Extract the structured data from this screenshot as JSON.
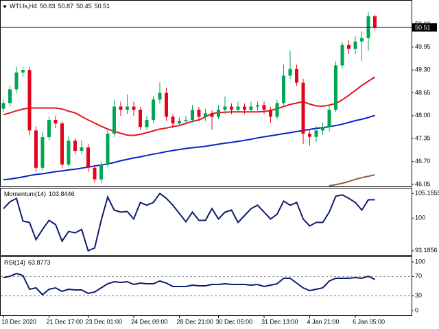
{
  "chart_data": [
    {
      "type": "candlestick",
      "title": "WTI.fs,H4",
      "categories": [
        "18 Dec 2020",
        null,
        null,
        null,
        null,
        null,
        null,
        "21 Dec 17:00",
        null,
        null,
        null,
        null,
        null,
        "23 Dec 01:00",
        null,
        null,
        null,
        null,
        null,
        null,
        "24 Dec 09:00",
        null,
        null,
        null,
        null,
        null,
        null,
        "28 Dec 21:00",
        null,
        null,
        null,
        null,
        null,
        "30 Dec 05:00",
        null,
        null,
        null,
        null,
        null,
        null,
        "31 Dec 13:00",
        null,
        null,
        null,
        null,
        null,
        null,
        "4 Jan 21:00",
        null,
        null,
        null,
        null,
        null,
        null,
        "6 Jan 05:00",
        null,
        null,
        null
      ],
      "open": [
        48.2,
        48.36,
        48.75,
        49.23,
        49.3,
        47.58,
        46.52,
        47.39,
        47.88,
        47.78,
        46.61,
        47.29,
        47.0,
        47.1,
        46.52,
        46.19,
        46.61,
        47.49,
        48.26,
        48.17,
        48.26,
        48.17,
        47.68,
        47.88,
        48.46,
        48.65,
        47.97,
        47.78,
        47.85,
        47.88,
        48.17,
        47.97,
        48.07,
        47.97,
        48.17,
        48.26,
        48.17,
        48.26,
        48.17,
        48.26,
        48.3,
        48.17,
        47.97,
        48.36,
        49.14,
        49.33,
        48.94,
        47.49,
        47.4,
        47.58,
        47.68,
        48.17,
        49.43,
        50.01,
        49.9,
        50.11,
        50.21,
        50.83
      ],
      "high": [
        48.46,
        48.85,
        49.4,
        49.38,
        49.4,
        47.7,
        47.55,
        47.98,
        48.0,
        47.85,
        47.4,
        47.35,
        47.3,
        47.2,
        46.6,
        46.7,
        47.6,
        48.45,
        48.4,
        48.6,
        48.4,
        48.25,
        48.0,
        48.55,
        48.95,
        48.8,
        48.05,
        47.95,
        48.0,
        48.3,
        48.25,
        48.2,
        48.15,
        48.3,
        48.55,
        48.35,
        48.4,
        48.35,
        48.4,
        48.4,
        48.4,
        48.25,
        48.45,
        49.45,
        49.85,
        49.45,
        49.05,
        47.6,
        47.7,
        47.8,
        48.3,
        49.55,
        50.1,
        50.15,
        50.25,
        50.4,
        50.95,
        50.87
      ],
      "low": [
        48.1,
        48.26,
        48.65,
        49.1,
        47.45,
        46.4,
        46.45,
        47.3,
        47.65,
        46.5,
        46.55,
        46.9,
        46.9,
        46.4,
        46.1,
        46.1,
        46.55,
        47.4,
        48.0,
        48.05,
        48.0,
        47.6,
        47.6,
        47.8,
        48.35,
        47.85,
        47.65,
        47.7,
        47.75,
        47.8,
        47.85,
        47.85,
        47.6,
        47.9,
        48.05,
        48.05,
        48.1,
        48.05,
        48.1,
        48.15,
        48.05,
        47.8,
        47.9,
        48.3,
        49.05,
        48.85,
        47.2,
        47.15,
        47.25,
        47.45,
        47.55,
        48.1,
        49.35,
        49.75,
        49.75,
        49.55,
        49.85,
        50.45
      ],
      "close": [
        48.36,
        48.75,
        49.23,
        49.3,
        47.58,
        46.52,
        47.39,
        47.88,
        47.78,
        46.61,
        47.29,
        47.0,
        47.1,
        46.52,
        46.19,
        46.61,
        47.49,
        48.26,
        48.17,
        48.26,
        48.17,
        47.68,
        47.88,
        48.46,
        48.65,
        47.97,
        47.78,
        47.85,
        47.88,
        48.17,
        47.97,
        48.07,
        47.97,
        48.17,
        48.26,
        48.17,
        48.26,
        48.17,
        48.26,
        48.3,
        48.17,
        47.97,
        48.36,
        49.14,
        49.33,
        48.94,
        47.49,
        47.4,
        47.58,
        47.68,
        48.17,
        49.43,
        50.01,
        49.9,
        50.11,
        50.21,
        50.83,
        50.51
      ],
      "up_color": "#00a651",
      "down_color": "#e3061a",
      "series": [
        {
          "color": "#e3161e",
          "values": [
            48.03,
            48.08,
            48.14,
            48.19,
            48.22,
            48.22,
            48.22,
            48.22,
            48.22,
            48.19,
            48.13,
            48.08,
            47.98,
            47.88,
            47.79,
            47.7,
            47.62,
            47.56,
            47.5,
            47.45,
            47.44,
            47.47,
            47.52,
            47.57,
            47.62,
            47.65,
            47.69,
            47.72,
            47.78,
            47.84,
            47.88,
            47.97,
            48.06,
            48.09,
            48.1,
            48.11,
            48.11,
            48.11,
            48.11,
            48.11,
            48.12,
            48.15,
            48.2,
            48.26,
            48.32,
            48.36,
            48.4,
            48.33,
            48.28,
            48.27,
            48.3,
            48.35,
            48.45,
            48.58,
            48.72,
            48.86,
            48.98,
            49.1
          ]
        },
        {
          "color": "#0a22c8",
          "values": [
            46.18,
            46.2,
            46.23,
            46.26,
            46.3,
            46.33,
            46.35,
            46.38,
            46.41,
            46.43,
            46.46,
            46.48,
            46.51,
            46.54,
            46.57,
            46.6,
            46.63,
            46.67,
            46.72,
            46.76,
            46.8,
            46.83,
            46.87,
            46.91,
            46.94,
            46.98,
            47.01,
            47.04,
            47.07,
            47.09,
            47.11,
            47.13,
            47.16,
            47.19,
            47.22,
            47.24,
            47.27,
            47.3,
            47.33,
            47.37,
            47.4,
            47.43,
            47.46,
            47.49,
            47.52,
            47.55,
            47.58,
            47.61,
            47.64,
            47.66,
            47.69,
            47.72,
            47.76,
            47.81,
            47.86,
            47.9,
            47.95,
            48.01
          ]
        },
        {
          "color": "#9c5a2e",
          "values": [
            null,
            null,
            null,
            null,
            null,
            null,
            null,
            null,
            null,
            null,
            null,
            null,
            null,
            null,
            null,
            null,
            null,
            null,
            null,
            null,
            null,
            null,
            null,
            null,
            null,
            null,
            null,
            null,
            null,
            null,
            null,
            null,
            null,
            null,
            null,
            null,
            null,
            null,
            null,
            null,
            null,
            null,
            null,
            null,
            null,
            null,
            null,
            null,
            null,
            null,
            46.01,
            46.04,
            46.08,
            46.13,
            46.19,
            46.24,
            46.28,
            46.32
          ]
        }
      ],
      "ylim": [
        45.99,
        51.27
      ],
      "yticks": [
        {
          "value": 50.6,
          "label": "50.60"
        },
        {
          "value": 49.95,
          "label": "49.95"
        },
        {
          "value": 49.3,
          "label": "49.30"
        },
        {
          "value": 48.65,
          "label": "48.65"
        },
        {
          "value": 48.0,
          "label": "48.00"
        },
        {
          "value": 47.35,
          "label": "47.35"
        },
        {
          "value": 46.7,
          "label": "46.70"
        },
        {
          "value": 46.05,
          "label": "46.05"
        }
      ]
    },
    {
      "type": "line",
      "title": "Momentum(14)",
      "color": "#0d1a6e",
      "values": [
        101.98,
        103.42,
        104.14,
        99.38,
        99.1,
        95.49,
        97.65,
        99.53,
        98.66,
        95.2,
        97.22,
        96.93,
        97.65,
        93.1856,
        93.76,
        99.53,
        104.43,
        101.69,
        101.26,
        101.4,
        99.82,
        103.28,
        102.7,
        103.28,
        105.1555,
        104.14,
        102.7,
        100.97,
        99.24,
        101.26,
        99.53,
        99.53,
        101.98,
        99.82,
        101.26,
        101.69,
        99.1,
        100.54,
        101.98,
        102.7,
        101.26,
        99.82,
        100.83,
        103.57,
        102.7,
        103.28,
        99.82,
        98.37,
        99.1,
        99.1,
        101.26,
        104.58,
        104.87,
        104.14,
        103.28,
        101.69,
        103.84,
        103.8446
      ],
      "ylim": [
        92.3,
        106.2
      ],
      "yticks": [
        105.1555,
        100,
        93.1856
      ]
    },
    {
      "type": "line",
      "title": "RSI(14)",
      "color": "#0d1a6e",
      "values": [
        67.6,
        70.4,
        76.1,
        71.8,
        43.7,
        46.5,
        32.4,
        43.7,
        46.5,
        39.4,
        43.7,
        42.3,
        42.3,
        35.2,
        38.0,
        46.5,
        54.9,
        59.2,
        57.7,
        59.2,
        53.5,
        56.3,
        54.9,
        54.9,
        60.6,
        56.3,
        49.3,
        49.3,
        49.3,
        52.1,
        50.7,
        50.7,
        53.5,
        53.5,
        54.9,
        53.5,
        53.5,
        53.5,
        52.1,
        53.5,
        49.3,
        52.1,
        54.9,
        66.2,
        66.2,
        56.3,
        46.5,
        40.8,
        43.7,
        46.5,
        60.6,
        66.2,
        66.2,
        66.2,
        67.6,
        66.2,
        70.4,
        63.8773
      ],
      "ylim": [
        -10,
        110
      ],
      "yticks": [
        100,
        70,
        30,
        0
      ]
    }
  ]
}
